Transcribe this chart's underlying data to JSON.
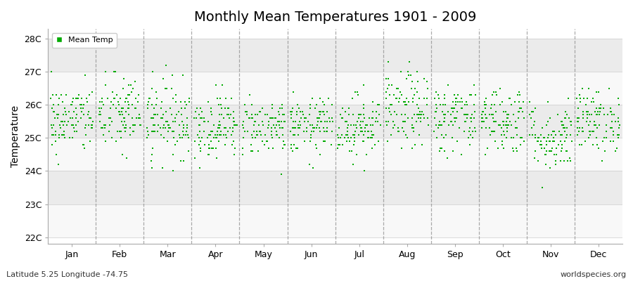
{
  "title": "Monthly Mean Temperatures 1901 - 2009",
  "ylabel": "Temperature",
  "xlabel_bottom_left": "Latitude 5.25 Longitude -74.75",
  "xlabel_bottom_right": "worldspecies.org",
  "ytick_labels": [
    "22C",
    "23C",
    "24C",
    "25C",
    "26C",
    "27C",
    "28C"
  ],
  "ytick_values": [
    22,
    23,
    24,
    25,
    26,
    27,
    28
  ],
  "ylim": [
    21.8,
    28.3
  ],
  "months": [
    "Jan",
    "Feb",
    "Mar",
    "Apr",
    "May",
    "Jun",
    "Jul",
    "Aug",
    "Sep",
    "Oct",
    "Nov",
    "Dec"
  ],
  "month_centers": [
    0.5,
    1.5,
    2.5,
    3.5,
    4.5,
    5.5,
    6.5,
    7.5,
    8.5,
    9.5,
    10.5,
    11.5
  ],
  "month_boundaries": [
    0,
    1,
    2,
    3,
    4,
    5,
    6,
    7,
    8,
    9,
    10,
    11,
    12
  ],
  "n_years": 109,
  "mean_temps_by_month": [
    25.56,
    25.72,
    25.57,
    25.36,
    25.35,
    25.36,
    25.38,
    25.82,
    25.62,
    25.57,
    25.02,
    25.52
  ],
  "std_temps_by_month": [
    0.52,
    0.6,
    0.58,
    0.48,
    0.42,
    0.42,
    0.48,
    0.58,
    0.52,
    0.52,
    0.52,
    0.48
  ],
  "marker_color": "#00aa00",
  "marker_size": 4,
  "background_color": "#ffffff",
  "band_color_odd": "#ebebeb",
  "band_color_even": "#f8f8f8",
  "dashed_line_color": "#888888",
  "legend_label": "Mean Temp",
  "random_seed": 42
}
